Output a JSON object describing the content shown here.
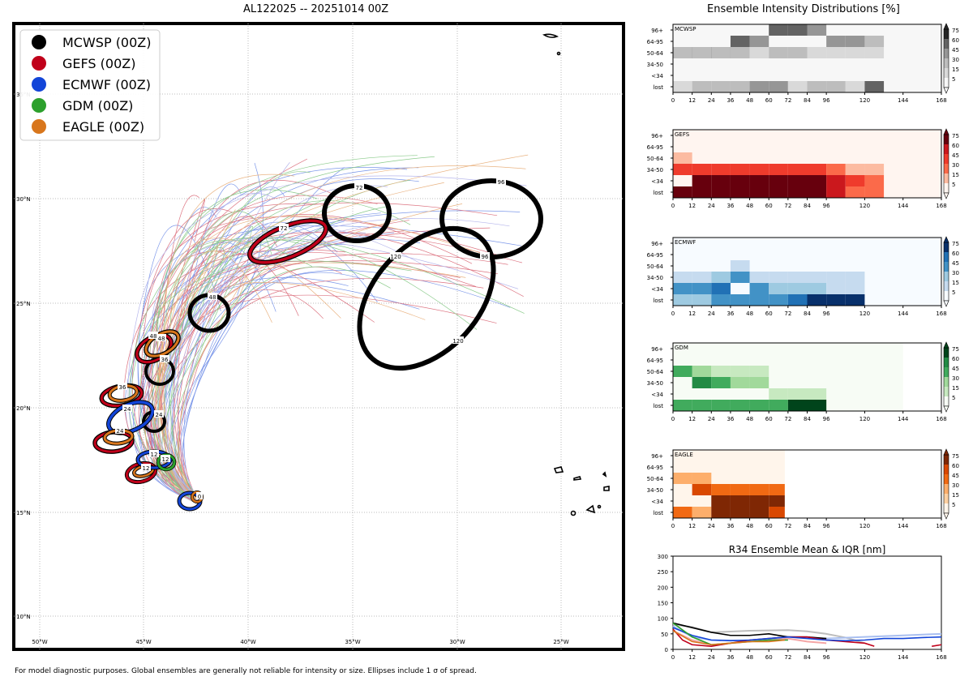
{
  "map": {
    "title": "AL122025 -- 20251014 00Z",
    "footer": "For model diagnostic purposes. Global ensembles are generally not reliable for intensity or size. Ellipses include 1 σ of spread.",
    "lat_labels": [
      "35°N",
      "30°N",
      "25°N",
      "20°N",
      "15°N",
      "10°N"
    ],
    "lon_labels": [
      "50°W",
      "45°W",
      "40°W",
      "35°W",
      "30°W",
      "25°W"
    ],
    "legend": [
      {
        "label": "MCWSP (00Z)",
        "color": "#000000"
      },
      {
        "label": "GEFS (00Z)",
        "color": "#c0001a"
      },
      {
        "label": "ECMWF (00Z)",
        "color": "#1345d8"
      },
      {
        "label": "GDM (00Z)",
        "color": "#2ca02c"
      },
      {
        "label": "EAGLE (00Z)",
        "color": "#d8761c"
      }
    ],
    "ellipse_labels": [
      "0",
      "12",
      "24",
      "36",
      "48",
      "72",
      "96",
      "120"
    ]
  },
  "panels": {
    "title": "Ensemble Intensity Distributions [%]",
    "row_labels": [
      "96+",
      "64-95",
      "50-64",
      "34-50",
      "<34",
      "lost"
    ],
    "x_ticks": [
      "0",
      "12",
      "24",
      "36",
      "48",
      "60",
      "72",
      "84",
      "96",
      "120",
      "144",
      "168"
    ],
    "colorbar_ticks": [
      "75",
      "60",
      "45",
      "30",
      "15",
      "5"
    ],
    "models": [
      {
        "name": "MCWSP",
        "color": "#000000"
      },
      {
        "name": "GEFS",
        "color": "#67000d"
      },
      {
        "name": "ECMWF",
        "color": "#08306b"
      },
      {
        "name": "GDM",
        "color": "#00441b"
      },
      {
        "name": "EAGLE",
        "color": "#7f2704"
      }
    ]
  },
  "r34": {
    "title": "R34 Ensemble Mean & IQR [nm]",
    "y_ticks": [
      "300",
      "250",
      "200",
      "150",
      "100",
      "50",
      "0"
    ],
    "x_ticks": [
      "0",
      "12",
      "24",
      "36",
      "48",
      "60",
      "72",
      "84",
      "96",
      "120",
      "144",
      "168"
    ]
  }
}
